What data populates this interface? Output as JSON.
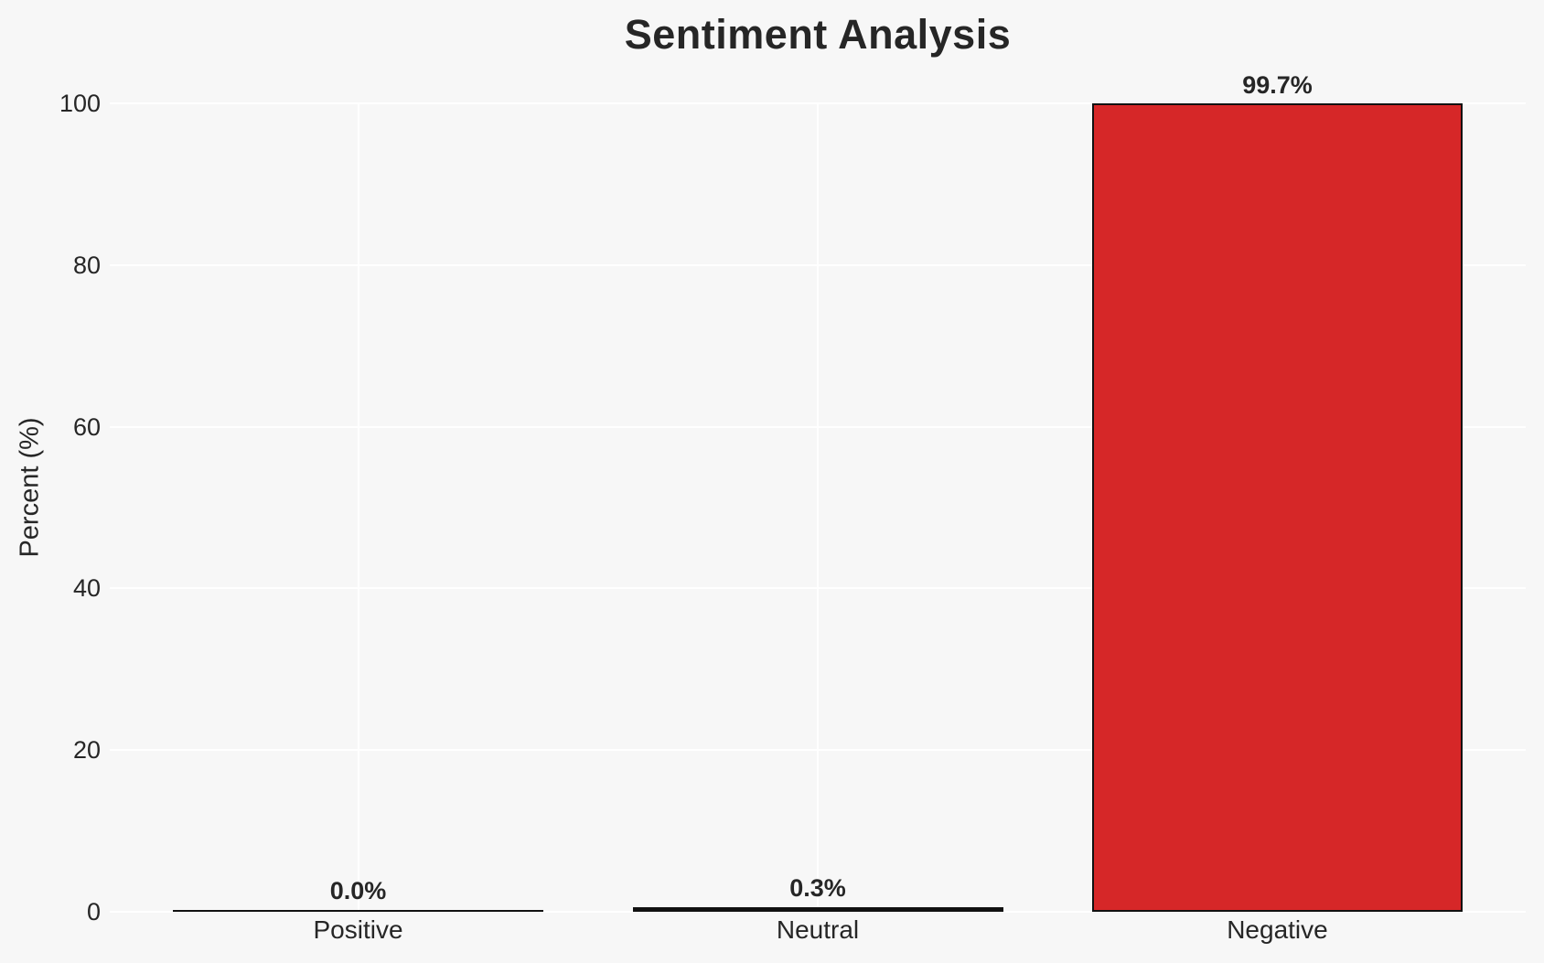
{
  "chart_data": {
    "type": "bar",
    "title": "Sentiment Analysis",
    "xlabel": "",
    "ylabel": "Percent (%)",
    "categories": [
      "Positive",
      "Neutral",
      "Negative"
    ],
    "values": [
      0.0,
      0.3,
      99.7
    ],
    "value_labels": [
      "0.0%",
      "0.3%",
      "99.7%"
    ],
    "yticks": [
      "0",
      "20",
      "40",
      "60",
      "80",
      "100"
    ],
    "ytick_values": [
      0,
      20,
      40,
      60,
      80,
      100
    ],
    "ylim": [
      0,
      100
    ],
    "grid": "on",
    "legend": "none",
    "colors": {
      "bar_fill": "#d62728",
      "bar_edge": "#111111",
      "background": "#f7f7f7",
      "gridline": "#ffffff",
      "text": "#262626"
    }
  }
}
